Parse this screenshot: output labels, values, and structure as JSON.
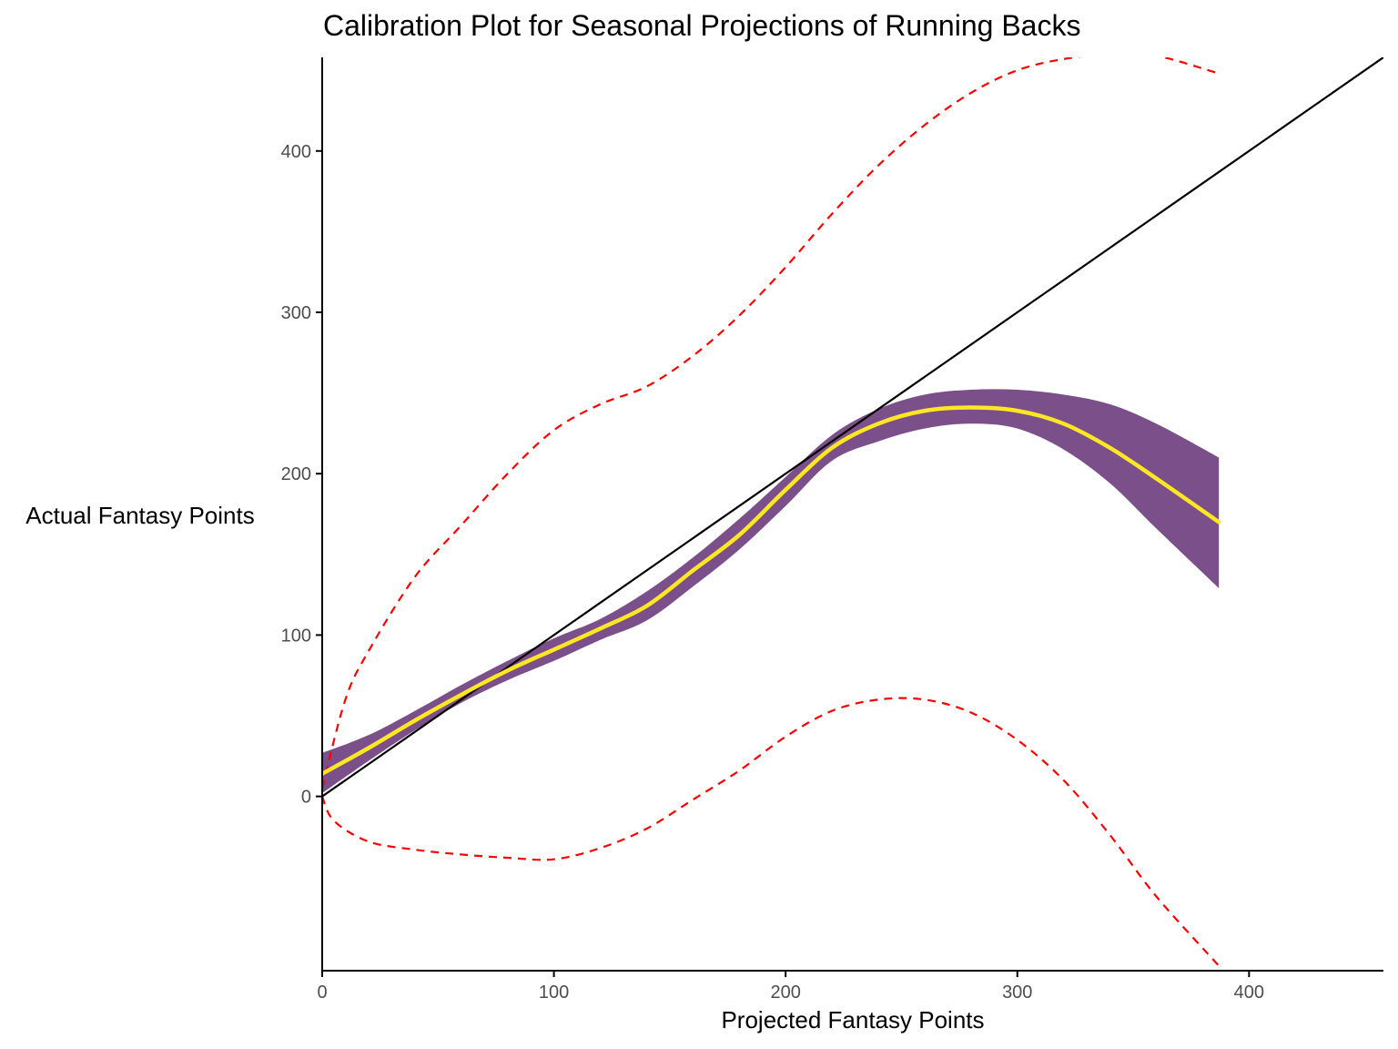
{
  "chart_data": {
    "type": "line",
    "title": "Calibration Plot for Seasonal Projections of Running Backs",
    "xlabel": "Projected Fantasy Points",
    "ylabel": "Actual Fantasy Points",
    "xlim": [
      0,
      458
    ],
    "ylim": [
      -108,
      458
    ],
    "x_ticks": [
      0,
      100,
      200,
      300,
      400
    ],
    "y_ticks": [
      0,
      100,
      200,
      300,
      400
    ],
    "grid": false,
    "legend": "none",
    "colors": {
      "band": "#7B4F89",
      "fit": "#FDE725",
      "prediction_interval": "#FF0000",
      "identity": "#000000",
      "axis": "#000000",
      "tick_text": "#4d4d4d"
    },
    "series": [
      {
        "kind": "identity",
        "x": [
          0,
          458
        ],
        "y": [
          0,
          458
        ]
      },
      {
        "kind": "fit",
        "x": [
          0,
          20,
          40,
          60,
          80,
          100,
          120,
          140,
          160,
          180,
          200,
          220,
          240,
          260,
          280,
          300,
          320,
          340,
          360,
          387
        ],
        "y": [
          14,
          30,
          47,
          63,
          78,
          91,
          104,
          118,
          140,
          162,
          190,
          216,
          231,
          239,
          241,
          239,
          231,
          216,
          197,
          170
        ]
      },
      {
        "kind": "confidence_upper",
        "x": [
          0,
          20,
          40,
          60,
          80,
          100,
          120,
          140,
          160,
          180,
          200,
          220,
          240,
          260,
          280,
          300,
          320,
          340,
          360,
          387
        ],
        "y": [
          27,
          38,
          53,
          69,
          84,
          98,
          110,
          127,
          148,
          172,
          198,
          224,
          240,
          249,
          252,
          252,
          249,
          243,
          231,
          210
        ]
      },
      {
        "kind": "confidence_lower",
        "x": [
          0,
          20,
          40,
          60,
          80,
          100,
          120,
          140,
          160,
          180,
          200,
          220,
          240,
          260,
          280,
          300,
          320,
          340,
          360,
          387
        ],
        "y": [
          2,
          22,
          41,
          58,
          72,
          84,
          97,
          109,
          130,
          153,
          180,
          208,
          220,
          228,
          231,
          228,
          215,
          194,
          166,
          129
        ]
      },
      {
        "kind": "prediction_upper",
        "x": [
          0,
          10,
          20,
          40,
          60,
          80,
          100,
          120,
          140,
          160,
          180,
          200,
          220,
          240,
          260,
          280,
          300,
          320,
          340,
          360,
          387
        ],
        "y": [
          5,
          60,
          90,
          136,
          168,
          200,
          227,
          243,
          254,
          273,
          298,
          328,
          361,
          391,
          416,
          436,
          450,
          457,
          460,
          459,
          448
        ]
      },
      {
        "kind": "prediction_lower",
        "x": [
          0,
          5,
          20,
          40,
          60,
          80,
          100,
          120,
          140,
          160,
          180,
          200,
          220,
          240,
          260,
          280,
          300,
          320,
          340,
          360,
          387
        ],
        "y": [
          0,
          -15,
          -28,
          -33,
          -36,
          -38,
          -39,
          -32,
          -20,
          -2,
          16,
          37,
          53,
          60,
          60,
          52,
          35,
          10,
          -24,
          -62,
          -105
        ]
      }
    ]
  }
}
